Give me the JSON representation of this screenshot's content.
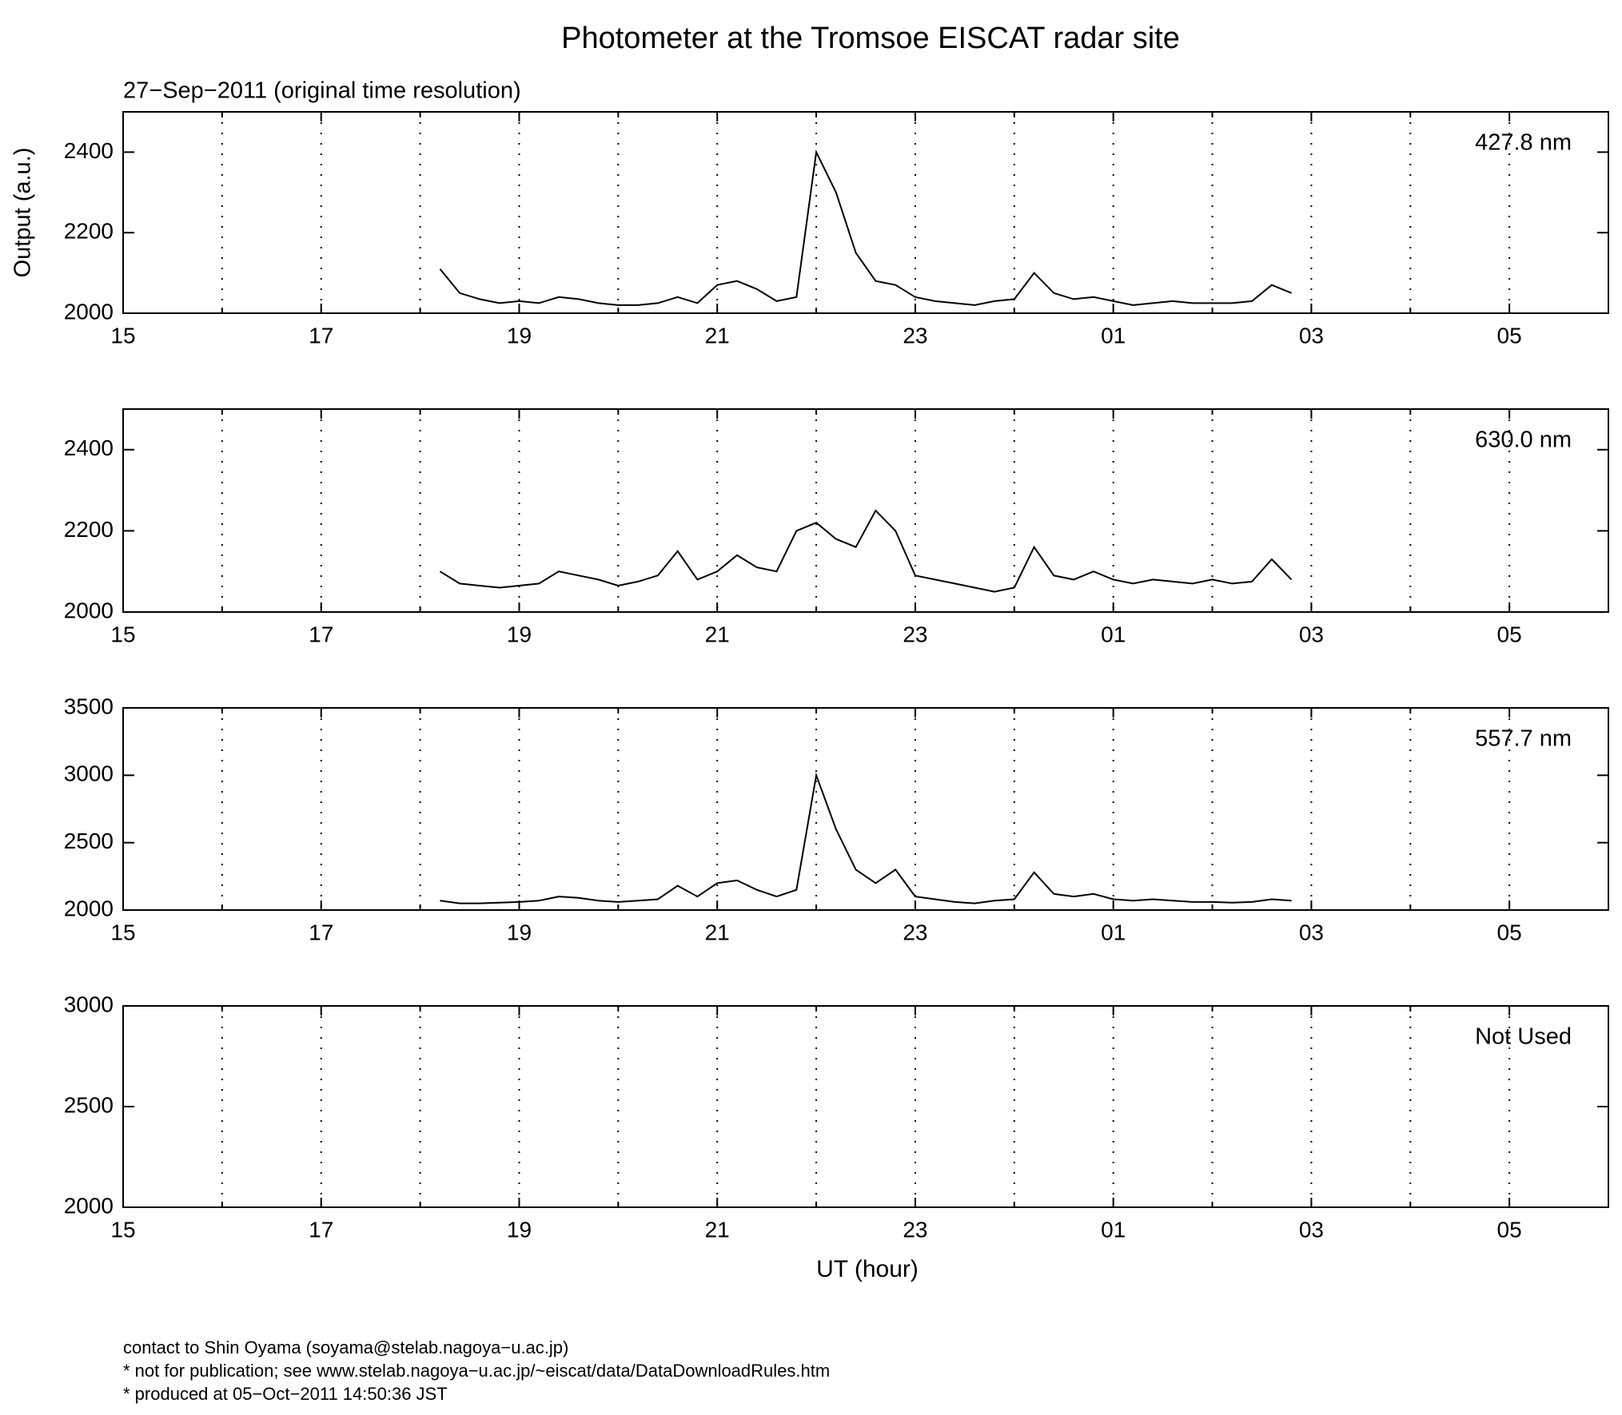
{
  "chart_data": [
    {
      "type": "line",
      "title": "Photometer at the Tromsoe EISCAT radar site",
      "subtitle": "27−Sep−2011 (original time resolution)",
      "ylabel": "Output (a.u.)",
      "annotation": "427.8 nm",
      "x": [
        18.2,
        18.4,
        18.6,
        18.8,
        19.0,
        19.2,
        19.4,
        19.6,
        19.8,
        20.0,
        20.2,
        20.4,
        20.6,
        20.8,
        21.0,
        21.2,
        21.4,
        21.6,
        21.8,
        22.0,
        22.2,
        22.4,
        22.6,
        22.8,
        23.0,
        23.2,
        23.4,
        23.6,
        23.8,
        24.0,
        24.2,
        24.4,
        24.6,
        24.8,
        25.0,
        25.2,
        25.4,
        25.6,
        25.8,
        26.0,
        26.2,
        26.4,
        26.6,
        26.8
      ],
      "series": [
        {
          "color": "#000000",
          "values": [
            2110,
            2050,
            2035,
            2025,
            2030,
            2025,
            2040,
            2035,
            2025,
            2020,
            2020,
            2025,
            2040,
            2025,
            2070,
            2080,
            2060,
            2030,
            2040,
            2400,
            2300,
            2150,
            2080,
            2070,
            2040,
            2030,
            2025,
            2020,
            2030,
            2035,
            2100,
            2050,
            2035,
            2040,
            2030,
            2020,
            2025,
            2030,
            2025,
            2025,
            2025,
            2030,
            2070,
            2050
          ]
        }
      ],
      "xlim": [
        15,
        30
      ],
      "xticks": [
        15,
        17,
        19,
        21,
        23,
        {
          "value": 25,
          "label": "01"
        },
        {
          "value": 27,
          "label": "03"
        },
        {
          "value": 29,
          "label": "05"
        }
      ],
      "xminorticks": [
        16,
        18,
        20,
        22,
        24,
        26,
        28
      ],
      "ylim": [
        2000,
        2500
      ],
      "yticks": [
        2000,
        2200,
        2400
      ],
      "grid": true
    },
    {
      "type": "line",
      "annotation": "630.0 nm",
      "x": [
        18.2,
        18.4,
        18.6,
        18.8,
        19.0,
        19.2,
        19.4,
        19.6,
        19.8,
        20.0,
        20.2,
        20.4,
        20.6,
        20.8,
        21.0,
        21.2,
        21.4,
        21.6,
        21.8,
        22.0,
        22.2,
        22.4,
        22.6,
        22.8,
        23.0,
        23.2,
        23.4,
        23.6,
        23.8,
        24.0,
        24.2,
        24.4,
        24.6,
        24.8,
        25.0,
        25.2,
        25.4,
        25.6,
        25.8,
        26.0,
        26.2,
        26.4,
        26.6,
        26.8
      ],
      "series": [
        {
          "color": "#000000",
          "values": [
            2100,
            2070,
            2065,
            2060,
            2065,
            2070,
            2100,
            2090,
            2080,
            2065,
            2075,
            2090,
            2150,
            2080,
            2100,
            2140,
            2110,
            2100,
            2200,
            2220,
            2180,
            2160,
            2250,
            2200,
            2090,
            2080,
            2070,
            2060,
            2050,
            2060,
            2160,
            2090,
            2080,
            2100,
            2080,
            2070,
            2080,
            2075,
            2070,
            2080,
            2070,
            2075,
            2130,
            2080
          ]
        }
      ],
      "xlim": [
        15,
        30
      ],
      "xticks": [
        15,
        17,
        19,
        21,
        23,
        {
          "value": 25,
          "label": "01"
        },
        {
          "value": 27,
          "label": "03"
        },
        {
          "value": 29,
          "label": "05"
        }
      ],
      "xminorticks": [
        16,
        18,
        20,
        22,
        24,
        26,
        28
      ],
      "ylim": [
        2000,
        2500
      ],
      "yticks": [
        2000,
        2200,
        2400
      ],
      "grid": true
    },
    {
      "type": "line",
      "annotation": "557.7 nm",
      "x": [
        18.2,
        18.4,
        18.6,
        18.8,
        19.0,
        19.2,
        19.4,
        19.6,
        19.8,
        20.0,
        20.2,
        20.4,
        20.6,
        20.8,
        21.0,
        21.2,
        21.4,
        21.6,
        21.8,
        22.0,
        22.2,
        22.4,
        22.6,
        22.8,
        23.0,
        23.2,
        23.4,
        23.6,
        23.8,
        24.0,
        24.2,
        24.4,
        24.6,
        24.8,
        25.0,
        25.2,
        25.4,
        25.6,
        25.8,
        26.0,
        26.2,
        26.4,
        26.6,
        26.8
      ],
      "series": [
        {
          "color": "#000000",
          "values": [
            2070,
            2050,
            2050,
            2055,
            2060,
            2070,
            2100,
            2090,
            2070,
            2060,
            2070,
            2080,
            2180,
            2100,
            2200,
            2220,
            2150,
            2100,
            2150,
            3000,
            2600,
            2300,
            2200,
            2300,
            2100,
            2080,
            2060,
            2050,
            2070,
            2080,
            2280,
            2120,
            2100,
            2120,
            2080,
            2070,
            2080,
            2070,
            2060,
            2060,
            2055,
            2060,
            2080,
            2070
          ]
        }
      ],
      "xlim": [
        15,
        30
      ],
      "xticks": [
        15,
        17,
        19,
        21,
        23,
        {
          "value": 25,
          "label": "01"
        },
        {
          "value": 27,
          "label": "03"
        },
        {
          "value": 29,
          "label": "05"
        }
      ],
      "xminorticks": [
        16,
        18,
        20,
        22,
        24,
        26,
        28
      ],
      "ylim": [
        2000,
        3500
      ],
      "yticks": [
        2000,
        2500,
        3000,
        3500
      ],
      "grid": true
    },
    {
      "type": "line",
      "annotation": "Not Used",
      "xlabel": "UT (hour)",
      "x": [],
      "series": [],
      "xlim": [
        15,
        30
      ],
      "xticks": [
        15,
        17,
        19,
        21,
        23,
        {
          "value": 25,
          "label": "01"
        },
        {
          "value": 27,
          "label": "03"
        },
        {
          "value": 29,
          "label": "05"
        }
      ],
      "xminorticks": [
        16,
        18,
        20,
        22,
        24,
        26,
        28
      ],
      "ylim": [
        2000,
        3000
      ],
      "yticks": [
        2000,
        2500,
        3000
      ],
      "grid": true
    }
  ],
  "footer": [
    "contact to Shin Oyama (soyama@stelab.nagoya−u.ac.jp)",
    "* not for publication; see www.stelab.nagoya−u.ac.jp/~eiscat/data/DataDownloadRules.htm",
    "* produced at 05−Oct−2011 14:50:36 JST"
  ]
}
